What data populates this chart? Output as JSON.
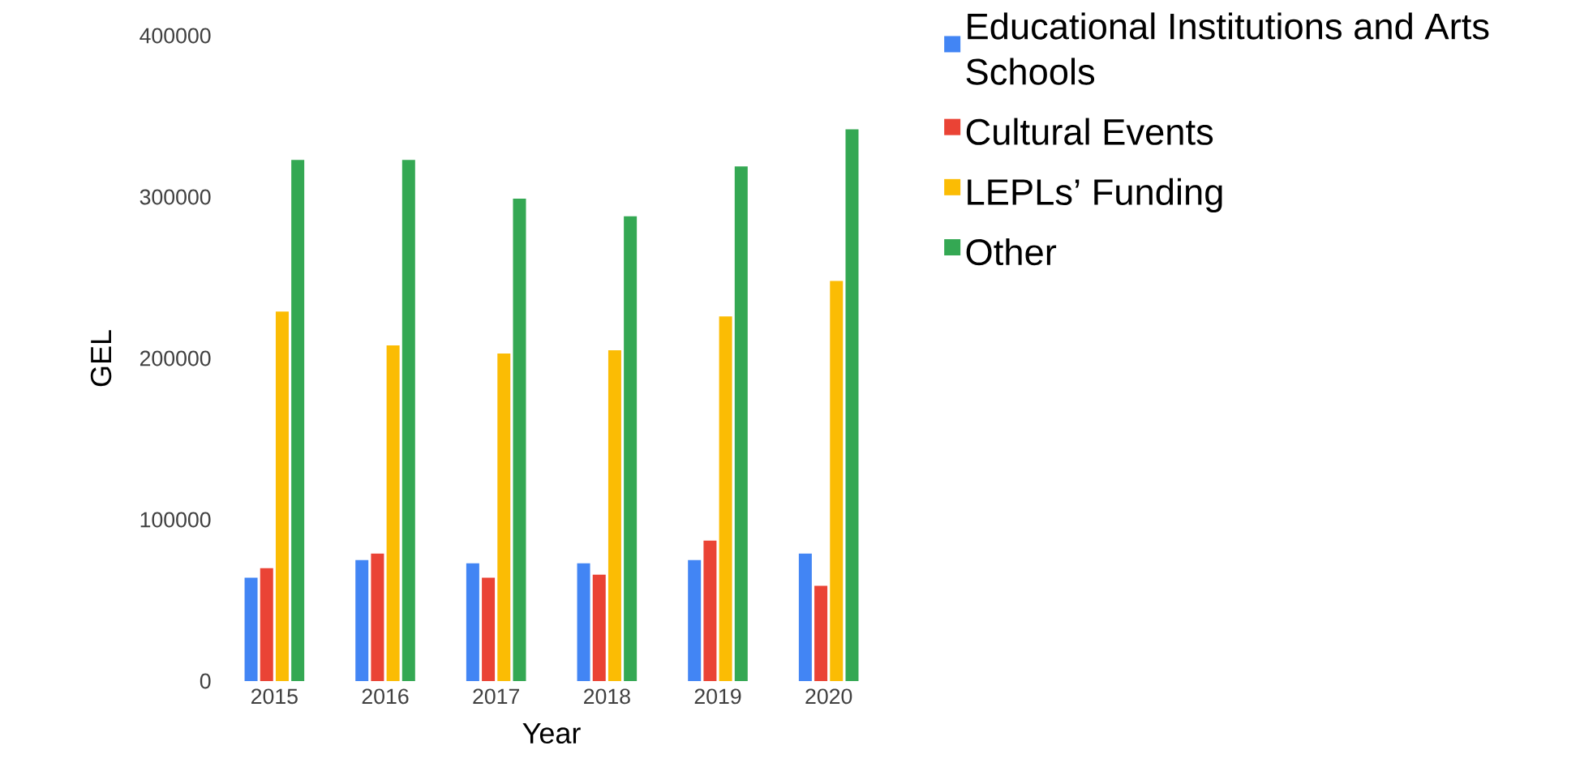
{
  "chart_data": {
    "type": "bar",
    "xlabel": "Year",
    "ylabel": "GEL",
    "categories": [
      "2015",
      "2016",
      "2017",
      "2018",
      "2019",
      "2020"
    ],
    "series": [
      {
        "name": "Educational Institutions and Arts Schools",
        "color": "#4285f4",
        "values": [
          64000,
          75000,
          73000,
          73000,
          75000,
          79000
        ]
      },
      {
        "name": "Cultural Events",
        "color": "#ea4335",
        "values": [
          70000,
          79000,
          64000,
          66000,
          87000,
          59000
        ]
      },
      {
        "name": "LEPLs’ Funding",
        "color": "#fbbc04",
        "values": [
          229000,
          208000,
          203000,
          205000,
          226000,
          248000
        ]
      },
      {
        "name": "Other",
        "color": "#34a853",
        "values": [
          323000,
          323000,
          299000,
          288000,
          319000,
          342000
        ]
      }
    ],
    "ylim": [
      0,
      400000
    ],
    "yticks": [
      0,
      100000,
      200000,
      300000,
      400000
    ],
    "legend": "right"
  }
}
